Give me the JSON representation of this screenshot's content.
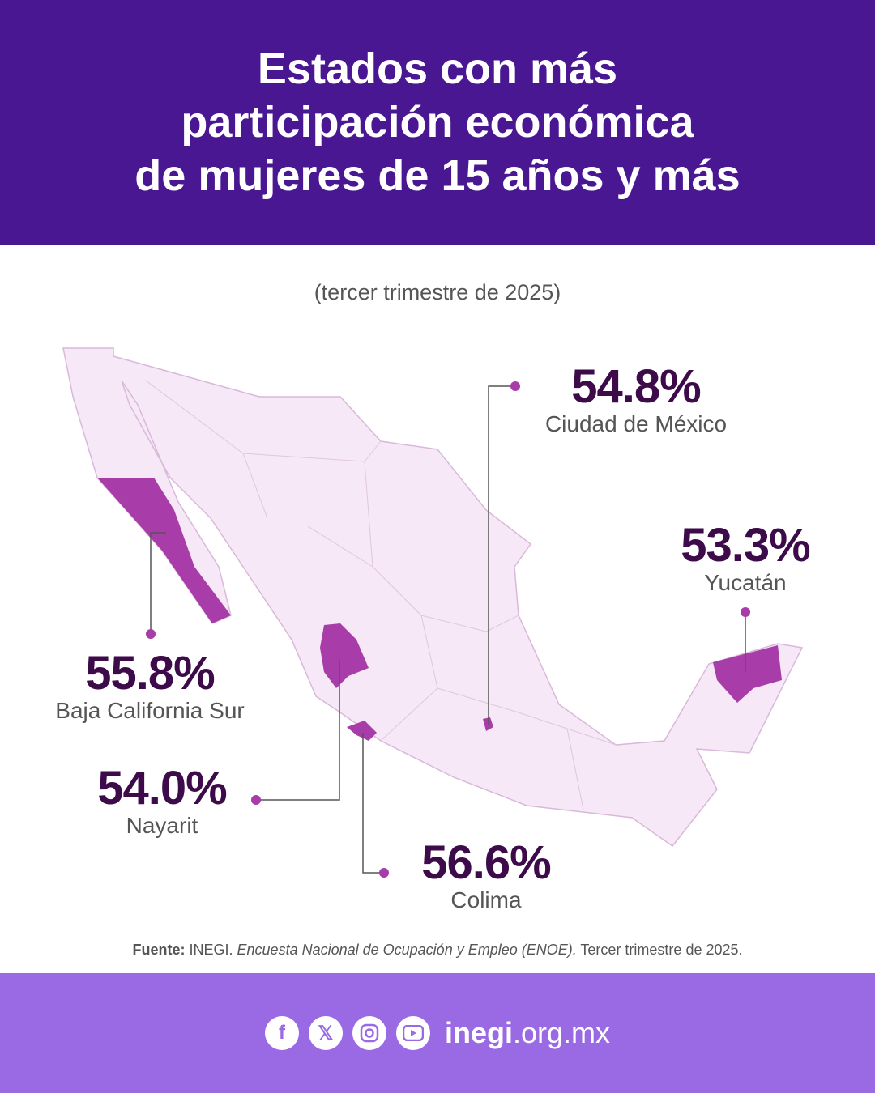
{
  "header": {
    "title": "Estados con más\nparticipación económica\nde mujeres de 15 años y más"
  },
  "subtitle": "(tercer trimestre de 2025)",
  "colors": {
    "header": "#4a1792",
    "footer": "#9a6ae4",
    "map_base": "#f6e8f6",
    "highlight": "#a83ca8",
    "value_text": "#3d0a4a"
  },
  "states": [
    {
      "value": "54.8%",
      "name": "Ciudad de México"
    },
    {
      "value": "53.3%",
      "name": "Yucatán"
    },
    {
      "value": "55.8%",
      "name": "Baja California Sur"
    },
    {
      "value": "54.0%",
      "name": "Nayarit"
    },
    {
      "value": "56.6%",
      "name": "Colima"
    }
  ],
  "source": {
    "label": "Fuente:",
    "org": "INEGI.",
    "survey": "Encuesta Nacional de Ocupación y Empleo (ENOE).",
    "period": "Tercer trimestre de 2025."
  },
  "footer": {
    "icons": [
      "facebook-icon",
      "x-icon",
      "instagram-icon",
      "youtube-icon"
    ],
    "site_bold": "inegi",
    "site_rest": ".org.mx"
  }
}
